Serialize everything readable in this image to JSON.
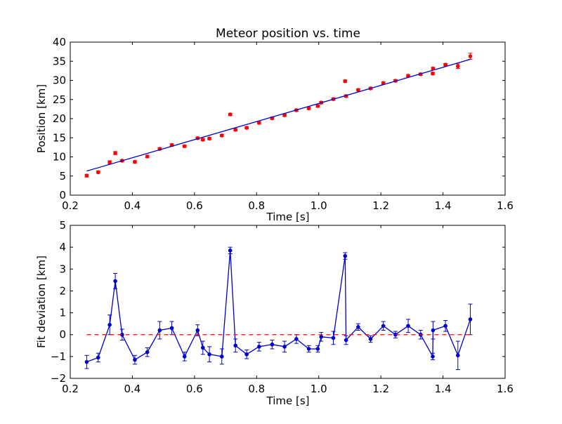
{
  "chart_data": [
    {
      "type": "scatter",
      "title": "Meteor position vs. time",
      "xlabel": "Time [s]",
      "ylabel": "Position [km]",
      "xlim": [
        0.2,
        1.6
      ],
      "ylim": [
        0,
        40
      ],
      "xticks": [
        "0.2",
        "0.4",
        "0.6",
        "0.8",
        "1.0",
        "1.2",
        "1.4",
        "1.6"
      ],
      "yticks": [
        "0",
        "5",
        "10",
        "15",
        "20",
        "25",
        "30",
        "35",
        "40"
      ],
      "grid": false,
      "series": [
        {
          "kind": "errorbar-points",
          "color": "#ff0000",
          "x": [
            0.253,
            0.29,
            0.327,
            0.345,
            0.367,
            0.408,
            0.448,
            0.488,
            0.527,
            0.568,
            0.61,
            0.627,
            0.648,
            0.688,
            0.715,
            0.732,
            0.768,
            0.808,
            0.85,
            0.89,
            0.928,
            0.968,
            0.997,
            1.008,
            1.047,
            1.085,
            1.088,
            1.127,
            1.167,
            1.208,
            1.247,
            1.288,
            1.328,
            1.367,
            1.368,
            1.408,
            1.448,
            1.488
          ],
          "y": [
            5.1,
            6.0,
            8.6,
            11.0,
            9.0,
            8.7,
            10.1,
            12.1,
            13.1,
            12.8,
            14.9,
            14.5,
            14.8,
            15.6,
            21.1,
            17.1,
            17.6,
            18.9,
            20.1,
            20.9,
            22.2,
            22.7,
            23.3,
            24.2,
            25.1,
            29.8,
            25.9,
            27.5,
            27.9,
            29.3,
            29.9,
            31.2,
            31.6,
            31.8,
            33.1,
            34.1,
            33.7,
            36.3
          ],
          "yerr": [
            0.35,
            0.3,
            0.4,
            0.4,
            0.25,
            0.3,
            0.3,
            0.3,
            0.3,
            0.3,
            0.3,
            0.3,
            0.3,
            0.3,
            0.3,
            0.3,
            0.3,
            0.3,
            0.3,
            0.3,
            0.3,
            0.3,
            0.3,
            0.3,
            0.3,
            0.3,
            0.3,
            0.3,
            0.3,
            0.3,
            0.3,
            0.3,
            0.3,
            0.3,
            0.3,
            0.3,
            0.6,
            0.8
          ]
        },
        {
          "kind": "fit-line",
          "color": "#0000cc",
          "x": [
            0.253,
            1.488
          ],
          "y": [
            6.3,
            35.5
          ]
        }
      ]
    },
    {
      "type": "line",
      "title": "",
      "xlabel": "Time [s]",
      "ylabel": "Fit deviation [km]",
      "xlim": [
        0.2,
        1.6
      ],
      "ylim": [
        -2,
        5
      ],
      "xticks": [
        "0.2",
        "0.4",
        "0.6",
        "0.8",
        "1.0",
        "1.2",
        "1.4",
        "1.6"
      ],
      "yticks": [
        "−2",
        "−1",
        "0",
        "1",
        "2",
        "3",
        "4",
        "5"
      ],
      "grid": false,
      "series": [
        {
          "kind": "errorbar-line",
          "color": "#0000cc",
          "x": [
            0.253,
            0.29,
            0.327,
            0.345,
            0.367,
            0.408,
            0.448,
            0.488,
            0.527,
            0.568,
            0.61,
            0.627,
            0.648,
            0.688,
            0.715,
            0.732,
            0.768,
            0.808,
            0.85,
            0.89,
            0.928,
            0.968,
            0.997,
            1.008,
            1.047,
            1.085,
            1.088,
            1.127,
            1.167,
            1.208,
            1.247,
            1.288,
            1.328,
            1.367,
            1.368,
            1.408,
            1.448,
            1.488
          ],
          "y": [
            -1.25,
            -1.05,
            0.45,
            2.45,
            0.0,
            -1.15,
            -0.8,
            0.2,
            0.3,
            -1.0,
            0.2,
            -0.6,
            -0.9,
            -1.0,
            3.85,
            -0.5,
            -0.9,
            -0.55,
            -0.45,
            -0.55,
            -0.2,
            -0.65,
            -0.65,
            -0.1,
            -0.15,
            3.6,
            -0.25,
            0.35,
            -0.2,
            0.4,
            0.0,
            0.4,
            0.0,
            -1.0,
            0.2,
            0.4,
            -0.95,
            0.7
          ],
          "yerr": [
            0.3,
            0.2,
            0.45,
            0.35,
            0.25,
            0.2,
            0.2,
            0.4,
            0.3,
            0.2,
            0.25,
            0.3,
            0.35,
            0.35,
            0.15,
            0.3,
            0.2,
            0.2,
            0.2,
            0.25,
            0.2,
            0.15,
            0.15,
            0.2,
            0.3,
            0.15,
            0.2,
            0.15,
            0.15,
            0.2,
            0.15,
            0.3,
            0.2,
            0.15,
            0.4,
            0.25,
            0.65,
            0.7
          ]
        },
        {
          "kind": "zero-line",
          "color": "#ff0000",
          "x": [
            0.253,
            1.488
          ],
          "y": [
            0,
            0
          ]
        }
      ]
    }
  ]
}
